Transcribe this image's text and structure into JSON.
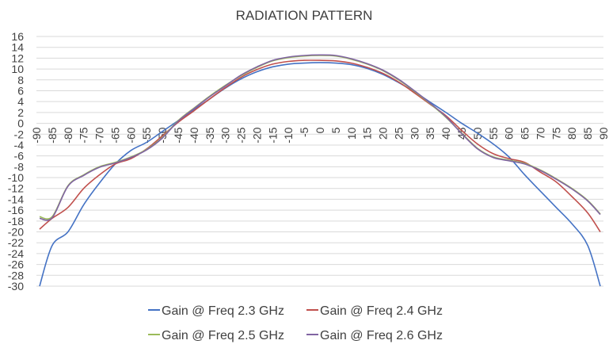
{
  "chart_data": {
    "type": "line",
    "title": "RADIATION PATTERN",
    "xlabel": "",
    "ylabel": "",
    "ylim": [
      -30,
      16
    ],
    "xlim": [
      -90,
      90
    ],
    "y_ticks": [
      16,
      14,
      12,
      10,
      8,
      6,
      4,
      2,
      0,
      -2,
      -4,
      -6,
      -8,
      -10,
      -12,
      -14,
      -16,
      -18,
      -20,
      -22,
      -24,
      -26,
      -28,
      -30
    ],
    "x_ticks": [
      -90,
      -85,
      -80,
      -75,
      -70,
      -65,
      -60,
      -55,
      -50,
      -45,
      -40,
      -35,
      -30,
      -25,
      -20,
      -15,
      -10,
      -5,
      0,
      5,
      10,
      15,
      20,
      25,
      30,
      35,
      40,
      45,
      50,
      55,
      60,
      65,
      70,
      75,
      80,
      85,
      90
    ],
    "grid": true,
    "legend_position": "bottom",
    "x": [
      -89,
      -85,
      -80,
      -75,
      -70,
      -65,
      -60,
      -55,
      -50,
      -45,
      -40,
      -35,
      -30,
      -25,
      -20,
      -15,
      -10,
      -5,
      0,
      5,
      10,
      15,
      20,
      25,
      30,
      35,
      40,
      45,
      50,
      55,
      60,
      65,
      70,
      75,
      80,
      85,
      89
    ],
    "series": [
      {
        "name": "Gain @ Freq 2.3 GHz",
        "color": "#4472C4",
        "values": [
          -30,
          -22.5,
          -20,
          -15,
          -11,
          -7.5,
          -5,
          -3.5,
          -1.5,
          0.5,
          2.5,
          4.5,
          6.5,
          8.2,
          9.5,
          10.4,
          10.9,
          11.1,
          11.2,
          11.1,
          10.8,
          10.1,
          9.0,
          7.5,
          5.8,
          3.9,
          2.0,
          0,
          -1.8,
          -3.8,
          -6.2,
          -9.5,
          -12.5,
          -15.5,
          -18.5,
          -22.5,
          -30
        ]
      },
      {
        "name": "Gain @ Freq 2.4 GHz",
        "color": "#C0504D",
        "values": [
          -19.5,
          -17.5,
          -15.5,
          -12,
          -9.5,
          -7.5,
          -6.5,
          -4.7,
          -2.3,
          0.2,
          2.3,
          4.5,
          6.6,
          8.5,
          9.9,
          10.9,
          11.4,
          11.6,
          11.6,
          11.5,
          11.1,
          10.3,
          9.2,
          7.6,
          5.6,
          3.5,
          1.4,
          -1.3,
          -3.8,
          -5.6,
          -6.5,
          -7.2,
          -9.0,
          -10.8,
          -13.5,
          -16.5,
          -20
        ]
      },
      {
        "name": "Gain @ Freq 2.5 GHz",
        "color": "#9BBB59",
        "values": [
          -17.2,
          -17.2,
          -11.5,
          -9.5,
          -8.0,
          -7.2,
          -6.2,
          -4.8,
          -2.6,
          0.5,
          2.8,
          5.0,
          7.0,
          8.8,
          10.3,
          11.5,
          12.1,
          12.4,
          12.5,
          12.4,
          11.8,
          10.9,
          9.7,
          8.0,
          5.9,
          3.6,
          1.1,
          -1.8,
          -4.6,
          -6.2,
          -6.8,
          -7.4,
          -8.6,
          -10.2,
          -12.0,
          -14.2,
          -16.7
        ]
      },
      {
        "name": "Gain @ Freq 2.6 GHz",
        "color": "#8064A2",
        "values": [
          -17.5,
          -17.4,
          -11.6,
          -9.6,
          -8.1,
          -7.3,
          -6.3,
          -4.9,
          -2.7,
          0.4,
          2.7,
          4.9,
          6.9,
          8.9,
          10.4,
          11.6,
          12.2,
          12.5,
          12.6,
          12.5,
          11.9,
          11.0,
          9.8,
          8.1,
          6.0,
          3.7,
          1.2,
          -1.9,
          -4.7,
          -6.3,
          -6.9,
          -7.5,
          -8.7,
          -10.3,
          -12.1,
          -14.3,
          -16.8
        ]
      }
    ]
  }
}
